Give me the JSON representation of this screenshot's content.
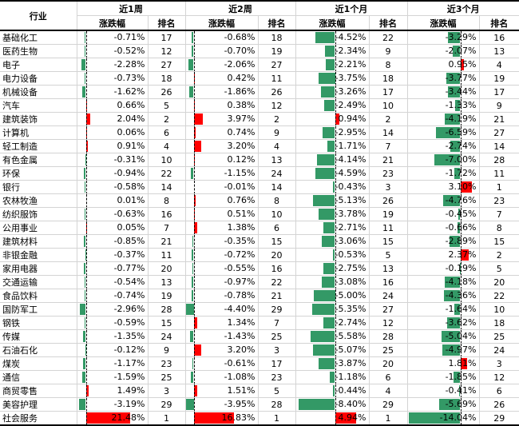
{
  "header": {
    "industry_label": "行业",
    "periods": [
      {
        "label": "近1周",
        "change_label": "涨跌幅",
        "rank_label": "排名"
      },
      {
        "label": "近2周",
        "change_label": "涨跌幅",
        "rank_label": "排名"
      },
      {
        "label": "近1个月",
        "change_label": "涨跌幅",
        "rank_label": "排名"
      },
      {
        "label": "近3个月",
        "change_label": "涨跌幅",
        "rank_label": "排名"
      }
    ]
  },
  "colors": {
    "positive": "#ff0000",
    "negative": "#339966"
  },
  "rows": [
    {
      "name": "基础化工",
      "w1": "-0.71%",
      "r1": "17",
      "w2": "-0.68%",
      "r2": "18",
      "m1": "-4.52%",
      "rm1": "22",
      "m3": "-3.29%",
      "rm3": "16"
    },
    {
      "name": "医药生物",
      "w1": "-0.52%",
      "r1": "12",
      "w2": "-0.70%",
      "r2": "19",
      "m1": "-2.34%",
      "rm1": "9",
      "m3": "-2.07%",
      "rm3": "13"
    },
    {
      "name": "电子",
      "w1": "-2.28%",
      "r1": "27",
      "w2": "-2.06%",
      "r2": "27",
      "m1": "-2.21%",
      "rm1": "8",
      "m3": "0.95%",
      "rm3": "4"
    },
    {
      "name": "电力设备",
      "w1": "-0.73%",
      "r1": "18",
      "w2": "0.42%",
      "r2": "11",
      "m1": "-3.75%",
      "rm1": "18",
      "m3": "-3.77%",
      "rm3": "19"
    },
    {
      "name": "机械设备",
      "w1": "-1.62%",
      "r1": "26",
      "w2": "-1.86%",
      "r2": "26",
      "m1": "-3.26%",
      "rm1": "17",
      "m3": "-3.44%",
      "rm3": "17"
    },
    {
      "name": "汽车",
      "w1": "0.66%",
      "r1": "5",
      "w2": "0.38%",
      "r2": "12",
      "m1": "-2.49%",
      "rm1": "10",
      "m3": "-1.33%",
      "rm3": "9"
    },
    {
      "name": "建筑装饰",
      "w1": "2.04%",
      "r1": "2",
      "w2": "3.97%",
      "r2": "2",
      "m1": "0.94%",
      "rm1": "2",
      "m3": "-4.19%",
      "rm3": "21"
    },
    {
      "name": "计算机",
      "w1": "0.06%",
      "r1": "6",
      "w2": "0.74%",
      "r2": "9",
      "m1": "-2.95%",
      "rm1": "14",
      "m3": "-6.59%",
      "rm3": "27"
    },
    {
      "name": "轻工制造",
      "w1": "0.91%",
      "r1": "4",
      "w2": "3.20%",
      "r2": "4",
      "m1": "-1.71%",
      "rm1": "7",
      "m3": "-2.74%",
      "rm3": "14"
    },
    {
      "name": "有色金属",
      "w1": "-0.31%",
      "r1": "10",
      "w2": "0.12%",
      "r2": "13",
      "m1": "-4.14%",
      "rm1": "21",
      "m3": "-7.00%",
      "rm3": "28"
    },
    {
      "name": "环保",
      "w1": "-0.94%",
      "r1": "22",
      "w2": "-1.15%",
      "r2": "24",
      "m1": "-4.59%",
      "rm1": "23",
      "m3": "-1.72%",
      "rm3": "11"
    },
    {
      "name": "银行",
      "w1": "-0.58%",
      "r1": "14",
      "w2": "-0.01%",
      "r2": "14",
      "m1": "-0.43%",
      "rm1": "3",
      "m3": "3.10%",
      "rm3": "1"
    },
    {
      "name": "农林牧渔",
      "w1": "0.01%",
      "r1": "8",
      "w2": "0.76%",
      "r2": "8",
      "m1": "-5.13%",
      "rm1": "26",
      "m3": "-4.76%",
      "rm3": "23"
    },
    {
      "name": "纺织服饰",
      "w1": "-0.63%",
      "r1": "16",
      "w2": "0.51%",
      "r2": "10",
      "m1": "-3.78%",
      "rm1": "19",
      "m3": "-0.45%",
      "rm3": "7"
    },
    {
      "name": "公用事业",
      "w1": "0.05%",
      "r1": "7",
      "w2": "1.38%",
      "r2": "6",
      "m1": "-2.71%",
      "rm1": "11",
      "m3": "-0.66%",
      "rm3": "8"
    },
    {
      "name": "建筑材料",
      "w1": "-0.85%",
      "r1": "21",
      "w2": "-0.35%",
      "r2": "15",
      "m1": "-3.06%",
      "rm1": "15",
      "m3": "-2.89%",
      "rm3": "15"
    },
    {
      "name": "非银金融",
      "w1": "-0.37%",
      "r1": "11",
      "w2": "-0.72%",
      "r2": "20",
      "m1": "-0.53%",
      "rm1": "5",
      "m3": "2.37%",
      "rm3": "2"
    },
    {
      "name": "家用电器",
      "w1": "-0.77%",
      "r1": "20",
      "w2": "-0.55%",
      "r2": "16",
      "m1": "-2.75%",
      "rm1": "13",
      "m3": "-0.19%",
      "rm3": "5"
    },
    {
      "name": "交通运输",
      "w1": "-0.54%",
      "r1": "13",
      "w2": "-0.97%",
      "r2": "22",
      "m1": "-3.08%",
      "rm1": "16",
      "m3": "-4.18%",
      "rm3": "20"
    },
    {
      "name": "食品饮料",
      "w1": "-0.74%",
      "r1": "19",
      "w2": "-0.78%",
      "r2": "21",
      "m1": "-5.00%",
      "rm1": "24",
      "m3": "-4.36%",
      "rm3": "22"
    },
    {
      "name": "国防军工",
      "w1": "-2.96%",
      "r1": "28",
      "w2": "-4.40%",
      "r2": "29",
      "m1": "-5.35%",
      "rm1": "27",
      "m3": "-1.64%",
      "rm3": "10"
    },
    {
      "name": "钢铁",
      "w1": "-0.59%",
      "r1": "15",
      "w2": "1.34%",
      "r2": "7",
      "m1": "-2.74%",
      "rm1": "12",
      "m3": "-3.62%",
      "rm3": "18"
    },
    {
      "name": "传媒",
      "w1": "-1.35%",
      "r1": "24",
      "w2": "-1.43%",
      "r2": "25",
      "m1": "-5.58%",
      "rm1": "28",
      "m3": "-5.04%",
      "rm3": "25"
    },
    {
      "name": "石油石化",
      "w1": "-0.12%",
      "r1": "9",
      "w2": "3.20%",
      "r2": "3",
      "m1": "-5.07%",
      "rm1": "25",
      "m3": "-4.97%",
      "rm3": "24"
    },
    {
      "name": "煤炭",
      "w1": "-1.17%",
      "r1": "23",
      "w2": "-0.61%",
      "r2": "17",
      "m1": "-3.87%",
      "rm1": "20",
      "m3": "1.81%",
      "rm3": "3"
    },
    {
      "name": "通信",
      "w1": "-1.59%",
      "r1": "25",
      "w2": "-1.08%",
      "r2": "23",
      "m1": "-1.18%",
      "rm1": "6",
      "m3": "-1.85%",
      "rm3": "12"
    },
    {
      "name": "商贸零售",
      "w1": "1.49%",
      "r1": "3",
      "w2": "1.51%",
      "r2": "5",
      "m1": "-0.44%",
      "rm1": "4",
      "m3": "-0.41%",
      "rm3": "6"
    },
    {
      "name": "美容护理",
      "w1": "-3.19%",
      "r1": "29",
      "w2": "-3.95%",
      "r2": "28",
      "m1": "-8.40%",
      "rm1": "29",
      "m3": "-5.69%",
      "rm3": "26"
    },
    {
      "name": "社会服务",
      "w1": "21.48%",
      "r1": "1",
      "w2": "16.83%",
      "r2": "1",
      "m1": "4.94%",
      "rm1": "1",
      "m3": "-14.04%",
      "rm3": "29"
    }
  ]
}
